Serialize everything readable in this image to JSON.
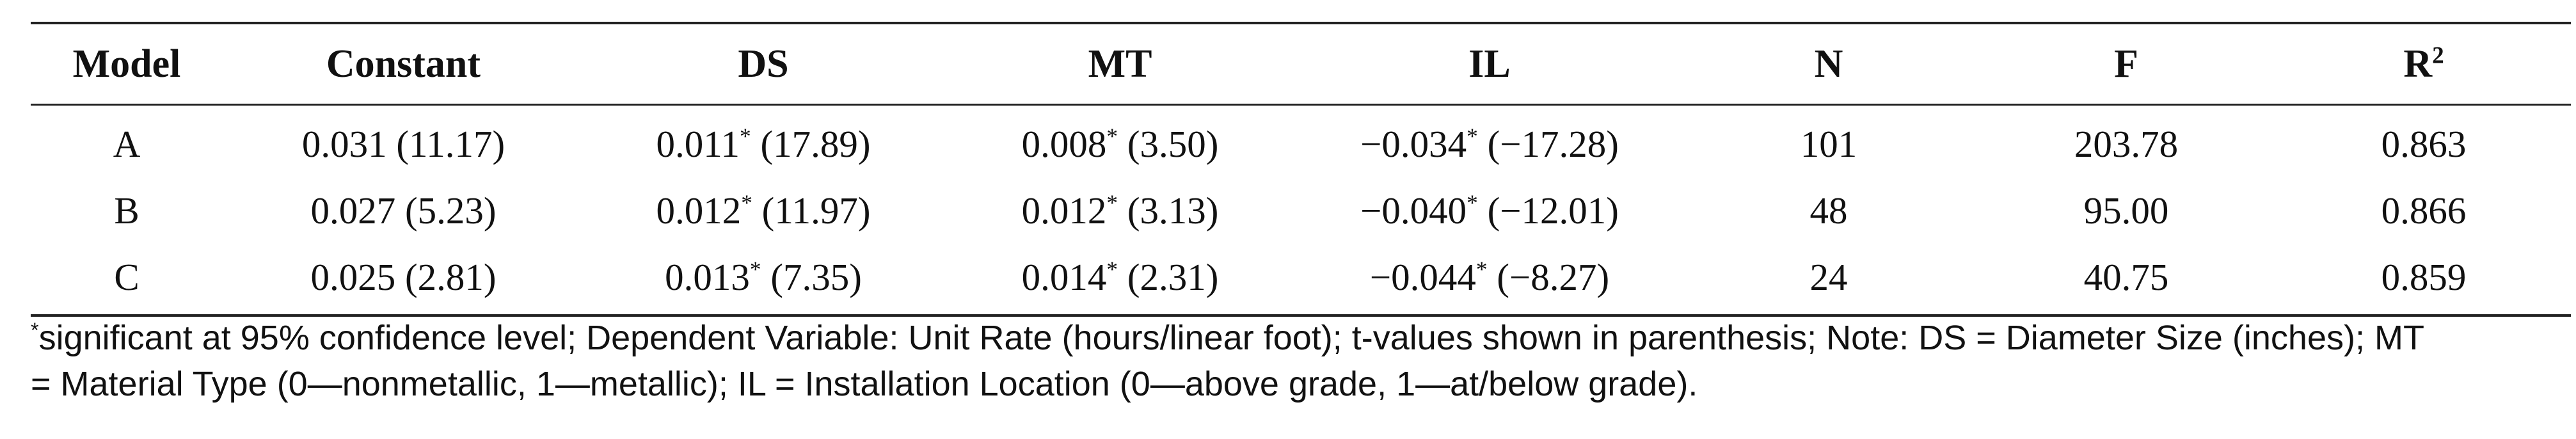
{
  "table": {
    "headers": [
      "Model",
      "Constant",
      "DS",
      "MT",
      "IL",
      "N",
      "F",
      "R",
      "2"
    ],
    "rows": [
      {
        "model": "A",
        "constant": "0.031 (11.17)",
        "ds": "0.011",
        "ds_sup": "*",
        "ds_t": " (17.89)",
        "mt": "0.008",
        "mt_sup": "*",
        "mt_t": " (3.50)",
        "il": "−0.034",
        "il_sup": "*",
        "il_t": " (−17.28)",
        "n": "101",
        "f": "203.78",
        "r2": "0.863"
      },
      {
        "model": "B",
        "constant": "0.027 (5.23)",
        "ds": "0.012",
        "ds_sup": "*",
        "ds_t": " (11.97)",
        "mt": "0.012",
        "mt_sup": "*",
        "mt_t": " (3.13)",
        "il": "−0.040",
        "il_sup": "*",
        "il_t": " (−12.01)",
        "n": "48",
        "f": "95.00",
        "r2": "0.866"
      },
      {
        "model": "C",
        "constant": "0.025 (2.81)",
        "ds": "0.013",
        "ds_sup": "*",
        "ds_t": " (7.35)",
        "mt": "0.014",
        "mt_sup": "*",
        "mt_t": " (2.31)",
        "il": "−0.044",
        "il_sup": "*",
        "il_t": " (−8.27)",
        "n": "24",
        "f": "40.75",
        "r2": "0.859"
      }
    ]
  },
  "note": {
    "marker": "*",
    "line1": "significant at 95% confidence level; Dependent Variable: Unit Rate (hours/linear foot); t-values shown in parenthesis; Note: DS = Diameter Size (inches); MT",
    "line2": "= Material Type (0—nonmetallic, 1—metallic); IL = Installation Location (0—above grade, 1—at/below grade)."
  }
}
